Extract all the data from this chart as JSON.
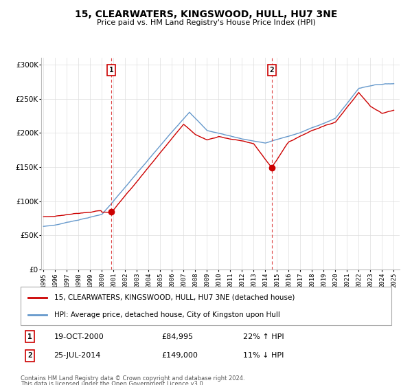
{
  "title": "15, CLEARWATERS, KINGSWOOD, HULL, HU7 3NE",
  "subtitle": "Price paid vs. HM Land Registry's House Price Index (HPI)",
  "sale1_date": "19-OCT-2000",
  "sale1_price": 84995,
  "sale1_label": "1",
  "sale1_pct": "22% ↑ HPI",
  "sale1_year": 2000.8,
  "sale2_date": "25-JUL-2014",
  "sale2_price": 149000,
  "sale2_label": "2",
  "sale2_pct": "11% ↓ HPI",
  "sale2_year": 2014.55,
  "legend_label1": "15, CLEARWATERS, KINGSWOOD, HULL, HU7 3NE (detached house)",
  "legend_label2": "HPI: Average price, detached house, City of Kingston upon Hull",
  "footer1": "Contains HM Land Registry data © Crown copyright and database right 2024.",
  "footer2": "This data is licensed under the Open Government Licence v3.0.",
  "red_color": "#cc0000",
  "blue_color": "#6699cc",
  "dashed_color": "#dd4444",
  "bg_color": "#ffffff",
  "grid_color": "#dddddd",
  "ylim": [
    0,
    310000
  ],
  "xlim": [
    1994.8,
    2025.5
  ]
}
